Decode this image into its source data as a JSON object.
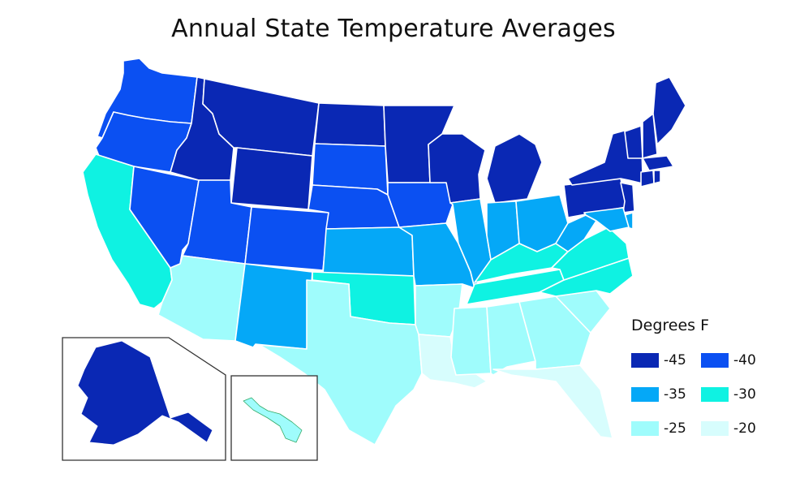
{
  "title": "Annual State Temperature Averages",
  "legend": {
    "title": "Degrees F",
    "items": [
      {
        "label": "-45",
        "color": "#0a28b4"
      },
      {
        "label": "-40",
        "color": "#0b50f2"
      },
      {
        "label": "-35",
        "color": "#05a8f7"
      },
      {
        "label": "-30",
        "color": "#0ff2e2"
      },
      {
        "label": "-25",
        "color": "#9ffcfc"
      },
      {
        "label": "-20",
        "color": "#d7fdfd"
      }
    ]
  },
  "states": [
    {
      "name": "WA",
      "bin": "-40"
    },
    {
      "name": "OR",
      "bin": "-40"
    },
    {
      "name": "CA",
      "bin": "-30"
    },
    {
      "name": "NV",
      "bin": "-40"
    },
    {
      "name": "ID",
      "bin": "-45"
    },
    {
      "name": "MT",
      "bin": "-45"
    },
    {
      "name": "WY",
      "bin": "-45"
    },
    {
      "name": "UT",
      "bin": "-40"
    },
    {
      "name": "AZ",
      "bin": "-25"
    },
    {
      "name": "CO",
      "bin": "-40"
    },
    {
      "name": "NM",
      "bin": "-35"
    },
    {
      "name": "ND",
      "bin": "-45"
    },
    {
      "name": "SD",
      "bin": "-40"
    },
    {
      "name": "NE",
      "bin": "-40"
    },
    {
      "name": "KS",
      "bin": "-35"
    },
    {
      "name": "OK",
      "bin": "-30"
    },
    {
      "name": "TX",
      "bin": "-25"
    },
    {
      "name": "MN",
      "bin": "-45"
    },
    {
      "name": "IA",
      "bin": "-40"
    },
    {
      "name": "MO",
      "bin": "-35"
    },
    {
      "name": "AR",
      "bin": "-25"
    },
    {
      "name": "LA",
      "bin": "-20"
    },
    {
      "name": "WI",
      "bin": "-45"
    },
    {
      "name": "IL",
      "bin": "-35"
    },
    {
      "name": "MI",
      "bin": "-45"
    },
    {
      "name": "IN",
      "bin": "-35"
    },
    {
      "name": "OH",
      "bin": "-35"
    },
    {
      "name": "KY",
      "bin": "-30"
    },
    {
      "name": "TN",
      "bin": "-30"
    },
    {
      "name": "MS",
      "bin": "-25"
    },
    {
      "name": "AL",
      "bin": "-25"
    },
    {
      "name": "GA",
      "bin": "-25"
    },
    {
      "name": "FL",
      "bin": "-20"
    },
    {
      "name": "SC",
      "bin": "-25"
    },
    {
      "name": "NC",
      "bin": "-30"
    },
    {
      "name": "VA",
      "bin": "-30"
    },
    {
      "name": "WV",
      "bin": "-35"
    },
    {
      "name": "PA",
      "bin": "-45"
    },
    {
      "name": "NY",
      "bin": "-45"
    },
    {
      "name": "VT",
      "bin": "-45"
    },
    {
      "name": "NH",
      "bin": "-45"
    },
    {
      "name": "ME",
      "bin": "-45"
    },
    {
      "name": "MA",
      "bin": "-45"
    },
    {
      "name": "CT",
      "bin": "-45"
    },
    {
      "name": "RI",
      "bin": "-45"
    },
    {
      "name": "NJ",
      "bin": "-45"
    },
    {
      "name": "DE",
      "bin": "-35"
    },
    {
      "name": "MD",
      "bin": "-35"
    },
    {
      "name": "AK",
      "bin": "-45"
    },
    {
      "name": "HI",
      "bin": "-25"
    }
  ]
}
